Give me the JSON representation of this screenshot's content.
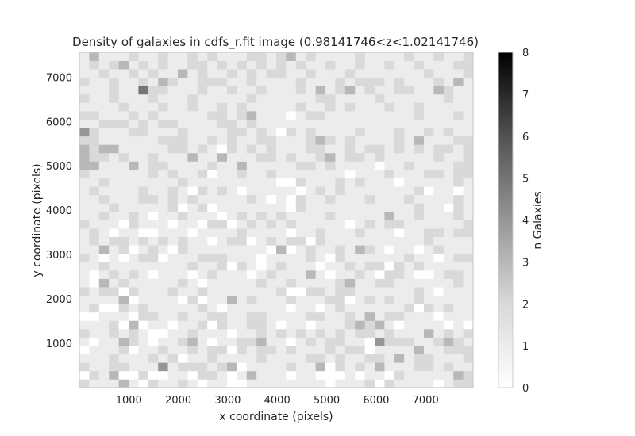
{
  "chart_data": {
    "type": "heatmap",
    "title": "Density of galaxies in cdfs_r.fit image (0.98141746<z<1.02141746)",
    "xlabel": "x coordinate (pixels)",
    "ylabel": "y coordinate (pixels)",
    "xlim": [
      0,
      7960
    ],
    "ylim": [
      0,
      7560
    ],
    "xticks": [
      1000,
      2000,
      3000,
      4000,
      5000,
      6000,
      7000
    ],
    "xtick_labels": [
      "1000",
      "2000",
      "3000",
      "4000",
      "5000",
      "6000",
      "7000"
    ],
    "yticks": [
      1000,
      2000,
      3000,
      4000,
      5000,
      6000,
      7000
    ],
    "ytick_labels": [
      "1000",
      "2000",
      "3000",
      "4000",
      "5000",
      "6000",
      "7000"
    ],
    "colorbar": {
      "label": "n Galaxies",
      "min": 0,
      "max": 8,
      "ticks": [
        0,
        1,
        2,
        3,
        4,
        5,
        6,
        7,
        8
      ],
      "tick_labels": [
        "0",
        "1",
        "2",
        "3",
        "4",
        "5",
        "6",
        "7",
        "8"
      ],
      "colormap": "Greys"
    },
    "grid": false,
    "bins_x": 40,
    "bins_y": 40,
    "counts": [
      [
        2,
        1,
        1,
        1,
        3,
        1,
        0,
        2,
        1,
        1,
        2,
        1,
        0,
        1,
        1,
        0,
        0,
        1,
        1,
        1,
        1,
        1,
        1,
        1,
        1,
        0,
        1,
        1,
        1,
        2,
        0,
        2,
        1,
        1,
        1,
        1,
        0,
        1,
        2,
        2
      ],
      [
        0,
        2,
        1,
        3,
        0,
        0,
        2,
        0,
        0,
        1,
        1,
        0,
        2,
        2,
        1,
        0,
        1,
        3,
        1,
        1,
        1,
        0,
        1,
        1,
        0,
        0,
        0,
        1,
        0,
        1,
        1,
        0,
        2,
        1,
        1,
        1,
        1,
        1,
        3,
        2
      ],
      [
        2,
        1,
        1,
        2,
        2,
        1,
        1,
        1,
        4,
        1,
        2,
        2,
        2,
        1,
        2,
        3,
        0,
        1,
        1,
        1,
        1,
        2,
        1,
        1,
        3,
        0,
        2,
        1,
        2,
        1,
        3,
        1,
        1,
        1,
        2,
        2,
        1,
        2,
        1,
        1
      ],
      [
        1,
        1,
        1,
        2,
        1,
        1,
        1,
        2,
        1,
        2,
        0,
        1,
        1,
        2,
        1,
        1,
        1,
        1,
        2,
        1,
        1,
        1,
        1,
        2,
        2,
        1,
        2,
        1,
        1,
        2,
        2,
        1,
        3,
        1,
        2,
        2,
        1,
        1,
        1,
        2
      ],
      [
        0,
        1,
        1,
        1,
        2,
        0,
        1,
        1,
        2,
        1,
        1,
        2,
        1,
        2,
        2,
        0,
        2,
        1,
        2,
        2,
        1,
        2,
        1,
        1,
        1,
        2,
        1,
        2,
        2,
        0,
        1,
        1,
        1,
        1,
        3,
        1,
        1,
        2,
        2,
        2
      ],
      [
        1,
        0,
        1,
        1,
        3,
        2,
        1,
        0,
        1,
        1,
        2,
        3,
        1,
        0,
        1,
        1,
        2,
        2,
        3,
        1,
        1,
        0,
        1,
        2,
        1,
        2,
        2,
        1,
        1,
        0,
        4,
        2,
        2,
        2,
        1,
        1,
        2,
        3,
        2,
        1
      ],
      [
        2,
        1,
        1,
        2,
        1,
        2,
        1,
        0,
        0,
        1,
        1,
        2,
        1,
        1,
        1,
        0,
        1,
        1,
        2,
        1,
        2,
        1,
        2,
        1,
        2,
        1,
        2,
        1,
        2,
        2,
        1,
        2,
        1,
        1,
        1,
        3,
        1,
        2,
        1,
        2
      ],
      [
        1,
        1,
        1,
        2,
        0,
        3,
        0,
        1,
        1,
        0,
        1,
        1,
        2,
        0,
        2,
        1,
        1,
        2,
        2,
        1,
        0,
        1,
        1,
        0,
        1,
        1,
        1,
        2,
        3,
        2,
        3,
        1,
        0,
        1,
        1,
        1,
        1,
        0,
        1,
        0
      ],
      [
        0,
        0,
        1,
        1,
        1,
        0,
        2,
        2,
        1,
        1,
        2,
        1,
        1,
        2,
        2,
        1,
        1,
        2,
        2,
        1,
        1,
        1,
        1,
        2,
        2,
        1,
        1,
        2,
        1,
        3,
        1,
        2,
        2,
        1,
        1,
        1,
        0,
        1,
        1,
        1
      ],
      [
        1,
        2,
        0,
        0,
        2,
        1,
        2,
        1,
        1,
        1,
        1,
        1,
        2,
        1,
        0,
        1,
        1,
        1,
        1,
        1,
        1,
        0,
        1,
        1,
        0,
        1,
        2,
        1,
        1,
        1,
        1,
        1,
        1,
        2,
        0,
        2,
        1,
        2,
        1,
        1
      ],
      [
        1,
        1,
        1,
        1,
        3,
        0,
        1,
        1,
        1,
        1,
        0,
        2,
        0,
        1,
        1,
        3,
        1,
        2,
        1,
        1,
        1,
        2,
        1,
        1,
        1,
        2,
        2,
        0,
        1,
        2,
        1,
        2,
        1,
        1,
        2,
        1,
        1,
        1,
        1,
        1
      ],
      [
        2,
        1,
        2,
        2,
        0,
        2,
        1,
        1,
        1,
        2,
        1,
        1,
        2,
        1,
        1,
        1,
        1,
        1,
        1,
        1,
        2,
        0,
        0,
        2,
        2,
        1,
        2,
        2,
        1,
        1,
        1,
        1,
        1,
        1,
        2,
        1,
        0,
        1,
        1,
        1
      ],
      [
        1,
        0,
        3,
        1,
        2,
        1,
        1,
        1,
        1,
        1,
        2,
        1,
        0,
        1,
        1,
        1,
        1,
        1,
        2,
        1,
        1,
        2,
        1,
        1,
        1,
        1,
        2,
        3,
        1,
        1,
        2,
        2,
        1,
        1,
        1,
        1,
        1,
        1,
        2,
        1
      ],
      [
        1,
        0,
        1,
        2,
        1,
        2,
        1,
        0,
        1,
        1,
        1,
        0,
        1,
        2,
        1,
        1,
        1,
        0,
        1,
        2,
        1,
        1,
        1,
        3,
        1,
        0,
        1,
        1,
        2,
        1,
        0,
        2,
        2,
        1,
        0,
        0,
        1,
        2,
        2,
        1
      ],
      [
        1,
        1,
        2,
        1,
        1,
        1,
        1,
        1,
        1,
        1,
        1,
        2,
        1,
        1,
        2,
        0,
        2,
        1,
        0,
        1,
        2,
        1,
        1,
        1,
        0,
        1,
        1,
        2,
        1,
        2,
        2,
        0,
        2,
        1,
        2,
        1,
        1,
        1,
        1,
        1
      ],
      [
        2,
        1,
        0,
        1,
        0,
        1,
        2,
        2,
        0,
        1,
        1,
        1,
        2,
        2,
        2,
        1,
        1,
        1,
        0,
        1,
        1,
        1,
        1,
        2,
        1,
        0,
        2,
        1,
        1,
        1,
        1,
        1,
        1,
        2,
        1,
        1,
        0,
        1,
        2,
        2
      ],
      [
        1,
        1,
        3,
        1,
        2,
        0,
        1,
        2,
        1,
        0,
        2,
        1,
        1,
        1,
        1,
        1,
        1,
        1,
        1,
        0,
        3,
        0,
        1,
        2,
        1,
        1,
        2,
        1,
        3,
        2,
        1,
        0,
        1,
        1,
        0,
        1,
        2,
        1,
        1,
        1
      ],
      [
        1,
        2,
        1,
        2,
        2,
        1,
        2,
        1,
        2,
        1,
        2,
        1,
        1,
        0,
        1,
        2,
        2,
        0,
        1,
        2,
        1,
        2,
        2,
        0,
        2,
        1,
        1,
        1,
        1,
        1,
        1,
        1,
        1,
        1,
        1,
        2,
        1,
        1,
        1,
        1
      ],
      [
        1,
        2,
        1,
        0,
        1,
        1,
        0,
        0,
        1,
        1,
        1,
        0,
        1,
        1,
        1,
        1,
        2,
        1,
        1,
        1,
        1,
        0,
        1,
        1,
        2,
        1,
        1,
        1,
        2,
        1,
        1,
        1,
        0,
        1,
        1,
        2,
        2,
        1,
        2,
        2
      ],
      [
        2,
        1,
        1,
        1,
        0,
        2,
        1,
        1,
        1,
        0,
        1,
        1,
        0,
        2,
        2,
        0,
        1,
        2,
        1,
        2,
        1,
        2,
        1,
        1,
        1,
        1,
        1,
        0,
        1,
        2,
        1,
        2,
        2,
        1,
        1,
        1,
        1,
        1,
        1,
        2
      ],
      [
        1,
        1,
        2,
        1,
        1,
        2,
        1,
        0,
        1,
        1,
        2,
        1,
        1,
        1,
        0,
        1,
        2,
        1,
        2,
        1,
        2,
        1,
        1,
        1,
        1,
        2,
        1,
        1,
        1,
        1,
        1,
        3,
        1,
        1,
        2,
        1,
        1,
        1,
        2,
        1
      ],
      [
        1,
        1,
        1,
        2,
        1,
        1,
        1,
        1,
        1,
        2,
        0,
        1,
        2,
        0,
        1,
        1,
        1,
        1,
        1,
        1,
        1,
        0,
        2,
        1,
        1,
        1,
        1,
        1,
        1,
        1,
        1,
        1,
        1,
        1,
        2,
        1,
        1,
        0,
        2,
        1
      ],
      [
        1,
        1,
        2,
        1,
        1,
        1,
        2,
        2,
        1,
        2,
        1,
        2,
        1,
        1,
        1,
        1,
        1,
        2,
        1,
        0,
        1,
        0,
        2,
        1,
        1,
        2,
        1,
        1,
        1,
        2,
        1,
        1,
        1,
        2,
        1,
        1,
        1,
        1,
        2,
        1
      ],
      [
        1,
        2,
        1,
        1,
        1,
        1,
        2,
        1,
        1,
        2,
        1,
        0,
        2,
        1,
        2,
        1,
        0,
        1,
        1,
        1,
        1,
        1,
        0,
        1,
        2,
        1,
        2,
        1,
        1,
        1,
        1,
        1,
        1,
        1,
        2,
        0,
        1,
        1,
        0,
        1
      ],
      [
        1,
        1,
        2,
        1,
        1,
        1,
        1,
        1,
        1,
        1,
        2,
        1,
        1,
        1,
        1,
        1,
        1,
        1,
        1,
        1,
        0,
        0,
        2,
        1,
        1,
        1,
        2,
        1,
        2,
        1,
        1,
        1,
        0,
        1,
        1,
        1,
        1,
        1,
        2,
        1
      ],
      [
        2,
        1,
        1,
        1,
        1,
        1,
        1,
        2,
        1,
        2,
        1,
        1,
        2,
        0,
        1,
        1,
        2,
        1,
        1,
        2,
        1,
        1,
        1,
        1,
        1,
        1,
        1,
        0,
        1,
        1,
        1,
        2,
        1,
        1,
        1,
        2,
        2,
        1,
        2,
        2
      ],
      [
        3,
        3,
        1,
        1,
        1,
        3,
        1,
        2,
        2,
        1,
        1,
        1,
        1,
        2,
        1,
        1,
        3,
        1,
        1,
        1,
        1,
        1,
        2,
        2,
        1,
        2,
        1,
        1,
        1,
        1,
        0,
        1,
        1,
        2,
        1,
        1,
        1,
        1,
        2,
        2
      ],
      [
        3,
        2,
        2,
        1,
        2,
        1,
        1,
        2,
        1,
        1,
        1,
        3,
        1,
        1,
        3,
        1,
        1,
        1,
        2,
        2,
        1,
        2,
        1,
        1,
        2,
        3,
        1,
        2,
        2,
        1,
        2,
        1,
        1,
        1,
        1,
        1,
        2,
        1,
        1,
        2
      ],
      [
        3,
        2,
        3,
        3,
        1,
        1,
        1,
        1,
        1,
        2,
        2,
        1,
        2,
        1,
        0,
        2,
        1,
        2,
        1,
        2,
        1,
        1,
        1,
        2,
        2,
        1,
        1,
        2,
        1,
        2,
        2,
        1,
        2,
        1,
        2,
        1,
        2,
        2,
        1,
        2
      ],
      [
        2,
        2,
        1,
        1,
        1,
        1,
        1,
        1,
        2,
        2,
        2,
        1,
        1,
        2,
        1,
        2,
        1,
        1,
        2,
        2,
        1,
        1,
        1,
        2,
        3,
        2,
        1,
        2,
        1,
        1,
        1,
        1,
        2,
        1,
        3,
        1,
        1,
        1,
        2,
        2
      ],
      [
        4,
        2,
        1,
        1,
        1,
        2,
        2,
        1,
        1,
        1,
        2,
        1,
        1,
        1,
        1,
        2,
        2,
        1,
        2,
        1,
        0,
        2,
        1,
        2,
        1,
        1,
        1,
        1,
        2,
        1,
        1,
        1,
        2,
        1,
        1,
        2,
        1,
        2,
        1,
        1
      ],
      [
        1,
        1,
        2,
        2,
        2,
        1,
        2,
        1,
        2,
        2,
        1,
        1,
        1,
        1,
        2,
        2,
        1,
        2,
        1,
        1,
        1,
        1,
        1,
        1,
        1,
        1,
        1,
        1,
        1,
        1,
        1,
        1,
        1,
        1,
        1,
        1,
        1,
        1,
        1,
        1
      ],
      [
        2,
        2,
        1,
        1,
        1,
        2,
        1,
        2,
        1,
        1,
        1,
        1,
        1,
        2,
        2,
        1,
        2,
        3,
        1,
        1,
        1,
        0,
        1,
        2,
        2,
        1,
        1,
        1,
        1,
        1,
        1,
        1,
        1,
        1,
        2,
        1,
        1,
        1,
        2,
        1
      ],
      [
        1,
        1,
        1,
        1,
        2,
        1,
        1,
        1,
        2,
        1,
        1,
        2,
        1,
        1,
        2,
        1,
        2,
        1,
        1,
        1,
        1,
        1,
        2,
        1,
        1,
        2,
        1,
        2,
        1,
        1,
        1,
        2,
        1,
        1,
        2,
        1,
        1,
        1,
        1,
        1
      ],
      [
        2,
        1,
        1,
        2,
        1,
        1,
        1,
        2,
        1,
        1,
        1,
        2,
        1,
        1,
        1,
        1,
        1,
        2,
        1,
        1,
        1,
        1,
        1,
        1,
        2,
        2,
        1,
        1,
        1,
        1,
        2,
        1,
        1,
        1,
        1,
        1,
        1,
        2,
        1,
        1
      ],
      [
        1,
        1,
        1,
        2,
        1,
        1,
        5,
        2,
        2,
        1,
        1,
        1,
        2,
        1,
        1,
        2,
        1,
        1,
        2,
        1,
        1,
        1,
        2,
        1,
        3,
        1,
        2,
        3,
        1,
        2,
        1,
        1,
        2,
        2,
        1,
        1,
        3,
        2,
        1,
        1
      ],
      [
        2,
        1,
        1,
        2,
        1,
        1,
        2,
        1,
        3,
        2,
        1,
        1,
        2,
        2,
        2,
        1,
        1,
        2,
        1,
        1,
        1,
        1,
        2,
        1,
        1,
        1,
        2,
        1,
        2,
        2,
        2,
        1,
        2,
        1,
        1,
        1,
        2,
        1,
        3,
        1
      ],
      [
        1,
        1,
        2,
        1,
        1,
        2,
        1,
        2,
        1,
        1,
        3,
        1,
        2,
        1,
        1,
        2,
        1,
        2,
        1,
        2,
        2,
        1,
        1,
        2,
        1,
        1,
        1,
        2,
        1,
        1,
        1,
        1,
        1,
        1,
        1,
        2,
        1,
        1,
        1,
        2
      ],
      [
        1,
        2,
        1,
        2,
        3,
        1,
        2,
        1,
        2,
        1,
        1,
        2,
        2,
        1,
        2,
        1,
        2,
        1,
        2,
        1,
        2,
        1,
        2,
        1,
        1,
        2,
        1,
        1,
        2,
        1,
        1,
        2,
        1,
        1,
        2,
        1,
        1,
        1,
        2,
        2
      ],
      [
        1,
        3,
        1,
        1,
        1,
        2,
        1,
        1,
        2,
        1,
        1,
        2,
        1,
        2,
        1,
        1,
        1,
        2,
        2,
        1,
        2,
        3,
        1,
        2,
        1,
        1,
        1,
        1,
        2,
        1,
        1,
        1,
        1,
        2,
        1,
        1,
        2,
        1,
        1,
        2
      ]
    ]
  }
}
